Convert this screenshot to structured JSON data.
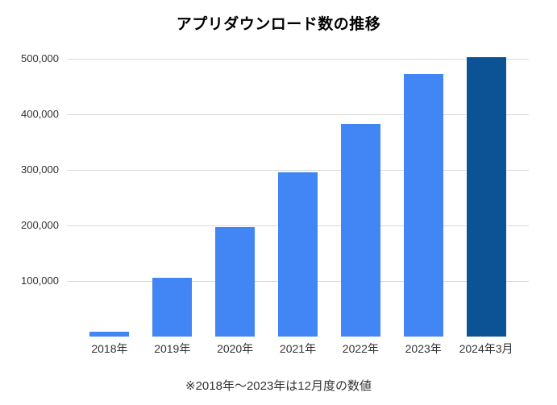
{
  "chart_data": {
    "type": "bar",
    "title": "アプリダウンロード数の推移",
    "note": "※2018年〜2023年は12月度の数値",
    "xlabel": "",
    "ylabel": "",
    "ylim": [
      0,
      500000
    ],
    "grid": true,
    "legend": "none",
    "categories": [
      "2018年",
      "2019年",
      "2020年",
      "2021年",
      "2022年",
      "2023年",
      "2024年3月"
    ],
    "values": [
      8000,
      106000,
      197000,
      296000,
      383000,
      473000,
      503000
    ],
    "bars": [
      {
        "label": "2018年",
        "value": 8000,
        "color": "#4285f4"
      },
      {
        "label": "2019年",
        "value": 106000,
        "color": "#4285f4"
      },
      {
        "label": "2020年",
        "value": 197000,
        "color": "#4285f4"
      },
      {
        "label": "2021年",
        "value": 296000,
        "color": "#4285f4"
      },
      {
        "label": "2022年",
        "value": 383000,
        "color": "#4285f4"
      },
      {
        "label": "2023年",
        "value": 473000,
        "color": "#4285f4"
      },
      {
        "label": "2024年3月",
        "value": 503000,
        "color": "#0b5394"
      }
    ],
    "y_ticks": [
      {
        "value": 100000,
        "label": "100,000"
      },
      {
        "value": 200000,
        "label": "200,000"
      },
      {
        "value": 300000,
        "label": "300,000"
      },
      {
        "value": 400000,
        "label": "400,000"
      },
      {
        "value": 500000,
        "label": "500,000"
      }
    ],
    "colors": {
      "bar_default": "#4285f4",
      "bar_highlight": "#0b5394",
      "grid": "#d9d9d9",
      "title_text": "#000000",
      "axis_text": "#333333",
      "note_text": "#333333",
      "background": "#ffffff"
    }
  }
}
